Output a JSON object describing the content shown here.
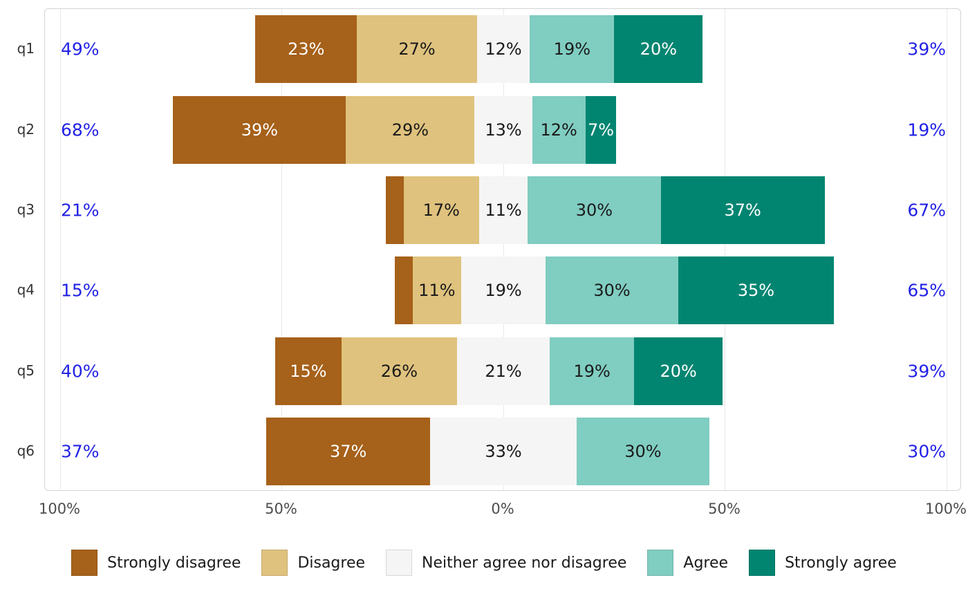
{
  "chart_data": {
    "type": "bar",
    "subtype": "diverging_stacked_likert",
    "title": "",
    "categories": [
      "Strongly disagree",
      "Disagree",
      "Neither agree nor disagree",
      "Agree",
      "Strongly agree"
    ],
    "category_colors": [
      "#a6611a",
      "#dfc27d",
      "#f5f5f5",
      "#80cdc1",
      "#018571"
    ],
    "category_label_colors": [
      "#ffffff",
      "#1a1a1a",
      "#1a1a1a",
      "#1a1a1a",
      "#ffffff"
    ],
    "questions": [
      {
        "id": "q1",
        "values": [
          23,
          27,
          12,
          19,
          20
        ],
        "left_total": "49%",
        "right_total": "39%"
      },
      {
        "id": "q2",
        "values": [
          39,
          29,
          13,
          12,
          7
        ],
        "left_total": "68%",
        "right_total": "19%"
      },
      {
        "id": "q3",
        "values": [
          4,
          17,
          11,
          30,
          37
        ],
        "left_total": "21%",
        "right_total": "67%"
      },
      {
        "id": "q4",
        "values": [
          4,
          11,
          19,
          30,
          35
        ],
        "left_total": "15%",
        "right_total": "65%"
      },
      {
        "id": "q5",
        "values": [
          15,
          26,
          21,
          19,
          20
        ],
        "left_total": "40%",
        "right_total": "39%"
      },
      {
        "id": "q6",
        "values": [
          37,
          0,
          33,
          30,
          0
        ],
        "left_total": "37%",
        "right_total": "30%"
      }
    ],
    "x_axis": {
      "range": [
        -100,
        100
      ],
      "tick_values": [
        -100,
        -50,
        0,
        50,
        100
      ],
      "tick_labels": [
        "100%",
        "50%",
        "0%",
        "50%",
        "100%"
      ]
    },
    "label_suffix": "%",
    "label_min_pct": 7,
    "grid": true,
    "legend_position": "bottom",
    "colors": {
      "total_label": "#2222e6",
      "axis_text": "#4d4d4d",
      "y_label_text": "#333333",
      "gridline": "#e8e8e8",
      "panel_border": "#d4d4d4",
      "background": "#ffffff"
    },
    "legend": {
      "items": [
        "Strongly disagree",
        "Disagree",
        "Neither agree nor disagree",
        "Agree",
        "Strongly agree"
      ]
    }
  }
}
